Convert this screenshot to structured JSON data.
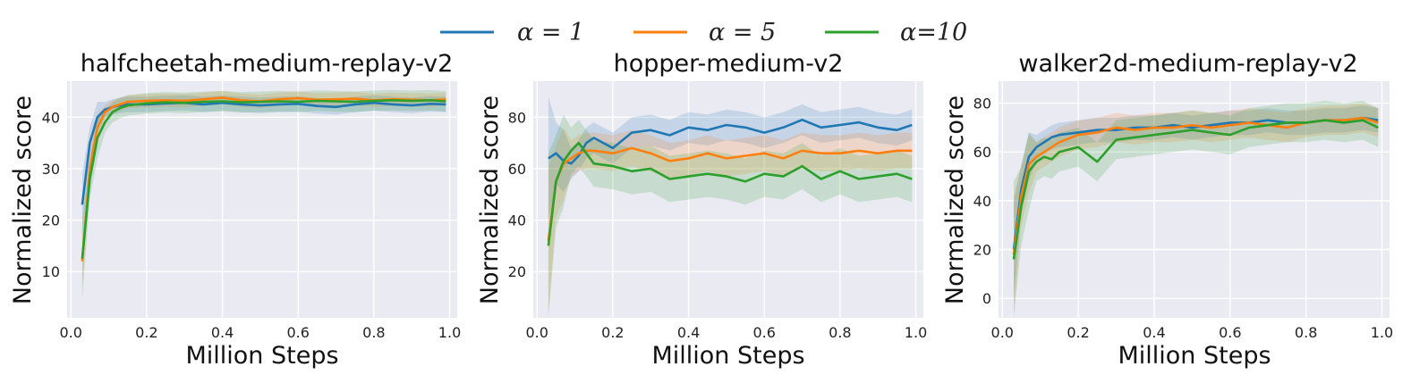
{
  "legend": [
    {
      "name": "α = 1",
      "color": "#1f77b4"
    },
    {
      "name": "α = 5",
      "color": "#ff7f0e"
    },
    {
      "name": "α=10",
      "color": "#2ca02c"
    }
  ],
  "chart_data": [
    {
      "type": "line",
      "title": "halfcheetah-medium-replay-v2",
      "xlabel": "Million Steps",
      "ylabel": "Normalized score",
      "xlim": [
        -0.01,
        1.02
      ],
      "ylim": [
        1,
        47
      ],
      "xticks": [
        0.0,
        0.2,
        0.4,
        0.6,
        0.8,
        1.0
      ],
      "yticks": [
        10,
        20,
        30,
        40
      ],
      "grid": true,
      "x": [
        0.03,
        0.05,
        0.07,
        0.09,
        0.11,
        0.13,
        0.15,
        0.2,
        0.25,
        0.3,
        0.35,
        0.4,
        0.45,
        0.5,
        0.55,
        0.6,
        0.65,
        0.7,
        0.75,
        0.8,
        0.85,
        0.9,
        0.95,
        0.99
      ],
      "series": [
        {
          "name": "α = 1",
          "values": [
            23,
            35,
            40,
            41.5,
            42,
            42.3,
            42.5,
            42.5,
            42.7,
            42.8,
            42.5,
            42.8,
            42.5,
            42.3,
            42.5,
            42.6,
            42.2,
            42.0,
            42.5,
            42.8,
            42.5,
            42.3,
            42.6,
            42.5
          ],
          "band": 1.5
        },
        {
          "name": "α = 5",
          "values": [
            12,
            30,
            38,
            41,
            42,
            42.5,
            43,
            43.2,
            43.3,
            43.2,
            43.5,
            43.8,
            43.3,
            43.1,
            43.5,
            43.7,
            43.4,
            43.5,
            43.6,
            43.3,
            43.5,
            43.4,
            43.3,
            43.5
          ],
          "band": 1.3
        },
        {
          "name": "α=10",
          "values": [
            12.5,
            28,
            36,
            39,
            41,
            41.8,
            42.3,
            42.7,
            42.9,
            42.8,
            43.0,
            43.1,
            42.9,
            43.0,
            43.1,
            43.0,
            43.2,
            43.1,
            43.0,
            43.2,
            43.3,
            43.2,
            43.3,
            43.1
          ],
          "band": 2.0
        }
      ]
    },
    {
      "type": "line",
      "title": "hopper-medium-v2",
      "xlabel": "Million Steps",
      "ylabel": "Normalized score",
      "xlim": [
        -0.01,
        1.02
      ],
      "ylim": [
        2,
        94
      ],
      "xticks": [
        0.0,
        0.2,
        0.4,
        0.6,
        0.8,
        1.0
      ],
      "yticks": [
        20,
        40,
        60,
        80
      ],
      "grid": true,
      "x": [
        0.03,
        0.05,
        0.07,
        0.09,
        0.11,
        0.13,
        0.15,
        0.2,
        0.25,
        0.3,
        0.35,
        0.4,
        0.45,
        0.5,
        0.55,
        0.6,
        0.65,
        0.7,
        0.75,
        0.8,
        0.85,
        0.9,
        0.95,
        0.99
      ],
      "series": [
        {
          "name": "α = 1",
          "values": [
            64,
            66,
            63,
            62,
            65,
            70,
            72,
            68,
            74,
            75,
            73,
            76,
            75,
            77,
            76,
            74,
            76,
            79,
            76,
            77,
            78,
            76,
            75,
            77
          ],
          "band": 6
        },
        {
          "name": "α = 5",
          "values": [
            32,
            55,
            62,
            64,
            66,
            67,
            67,
            66,
            68,
            66,
            63,
            64,
            66,
            64,
            65,
            66,
            64,
            67,
            66,
            66,
            67,
            66,
            67,
            67
          ],
          "band": 7
        },
        {
          "name": "α=10",
          "values": [
            30,
            55,
            63,
            67,
            70,
            66,
            62,
            61,
            59,
            60,
            56,
            57,
            58,
            57,
            55,
            58,
            57,
            61,
            56,
            59,
            56,
            57,
            58,
            56
          ],
          "band": 9
        }
      ]
    },
    {
      "type": "line",
      "title": "walker2d-medium-replay-v2",
      "xlabel": "Million Steps",
      "ylabel": "Normalized score",
      "xlim": [
        -0.01,
        1.02
      ],
      "ylim": [
        -8,
        89
      ],
      "xticks": [
        0.0,
        0.2,
        0.4,
        0.6,
        0.8,
        1.0
      ],
      "yticks": [
        0,
        20,
        40,
        60,
        80
      ],
      "grid": true,
      "x": [
        0.03,
        0.05,
        0.07,
        0.09,
        0.11,
        0.13,
        0.15,
        0.2,
        0.25,
        0.3,
        0.35,
        0.4,
        0.45,
        0.5,
        0.55,
        0.6,
        0.65,
        0.7,
        0.75,
        0.8,
        0.85,
        0.9,
        0.95,
        0.99
      ],
      "series": [
        {
          "name": "α = 1",
          "values": [
            20,
            45,
            58,
            62,
            64,
            66,
            67,
            68,
            69,
            69,
            70,
            70,
            71,
            70,
            71,
            72,
            72,
            73,
            72,
            72,
            73,
            73,
            74,
            73
          ],
          "band": 5
        },
        {
          "name": "α = 5",
          "values": [
            18,
            42,
            55,
            58,
            60,
            62,
            64,
            67,
            68,
            70,
            69,
            70,
            70,
            71,
            70,
            71,
            72,
            71,
            70,
            72,
            73,
            73,
            74,
            72
          ],
          "band": 6
        },
        {
          "name": "α=10",
          "values": [
            16,
            38,
            52,
            56,
            58,
            57,
            60,
            62,
            56,
            65,
            66,
            67,
            68,
            69,
            68,
            67,
            70,
            71,
            72,
            72,
            73,
            72,
            73,
            70
          ],
          "band": 8
        }
      ]
    }
  ]
}
